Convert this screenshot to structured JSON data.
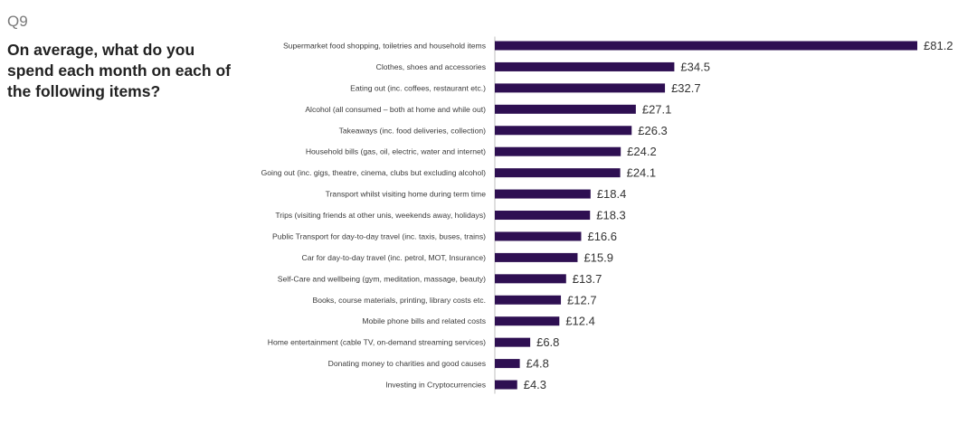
{
  "question_number": "Q9",
  "question_text": "On average, what do you spend each month on each of the following items?",
  "chart_data": {
    "type": "bar",
    "orientation": "horizontal",
    "title": "",
    "xlabel": "",
    "ylabel": "",
    "value_prefix": "£",
    "bar_color": "#2e0f52",
    "grid": false,
    "legend": "none",
    "categories": [
      "Supermarket food shopping, toiletries and household items",
      "Clothes, shoes and accessories",
      "Eating out (inc. coffees, restaurant etc.)",
      "Alcohol (all consumed – both at home and while out)",
      "Takeaways (inc. food deliveries, collection)",
      "Household bills (gas, oil, electric, water and internet)",
      "Going out (inc. gigs, theatre, cinema, clubs but excluding alcohol)",
      "Transport whilst visiting home during term time",
      "Trips (visiting friends at other unis, weekends away, holidays)",
      "Public Transport for day-to-day travel (inc. taxis, buses, trains)",
      "Car for day-to-day travel (inc. petrol, MOT, Insurance)",
      "Self-Care and wellbeing (gym, meditation, massage, beauty)",
      "Books, course materials, printing, library costs etc.",
      "Mobile phone bills and related costs",
      "Home entertainment (cable TV, on-demand streaming services)",
      "Donating money to charities and good causes",
      "Investing in Cryptocurrencies"
    ],
    "values": [
      81.2,
      34.5,
      32.7,
      27.1,
      26.3,
      24.2,
      24.1,
      18.4,
      18.3,
      16.6,
      15.9,
      13.7,
      12.7,
      12.4,
      6.8,
      4.8,
      4.3
    ],
    "value_labels": [
      "£81.2",
      "£34.5",
      "£32.7",
      "£27.1",
      "£26.3",
      "£24.2",
      "£24.1",
      "£18.4",
      "£18.3",
      "£16.6",
      "£15.9",
      "£13.7",
      "£12.7",
      "£12.4",
      "£6.8",
      "£4.8",
      "£4.3"
    ],
    "xlim": [
      0,
      81.2
    ]
  }
}
